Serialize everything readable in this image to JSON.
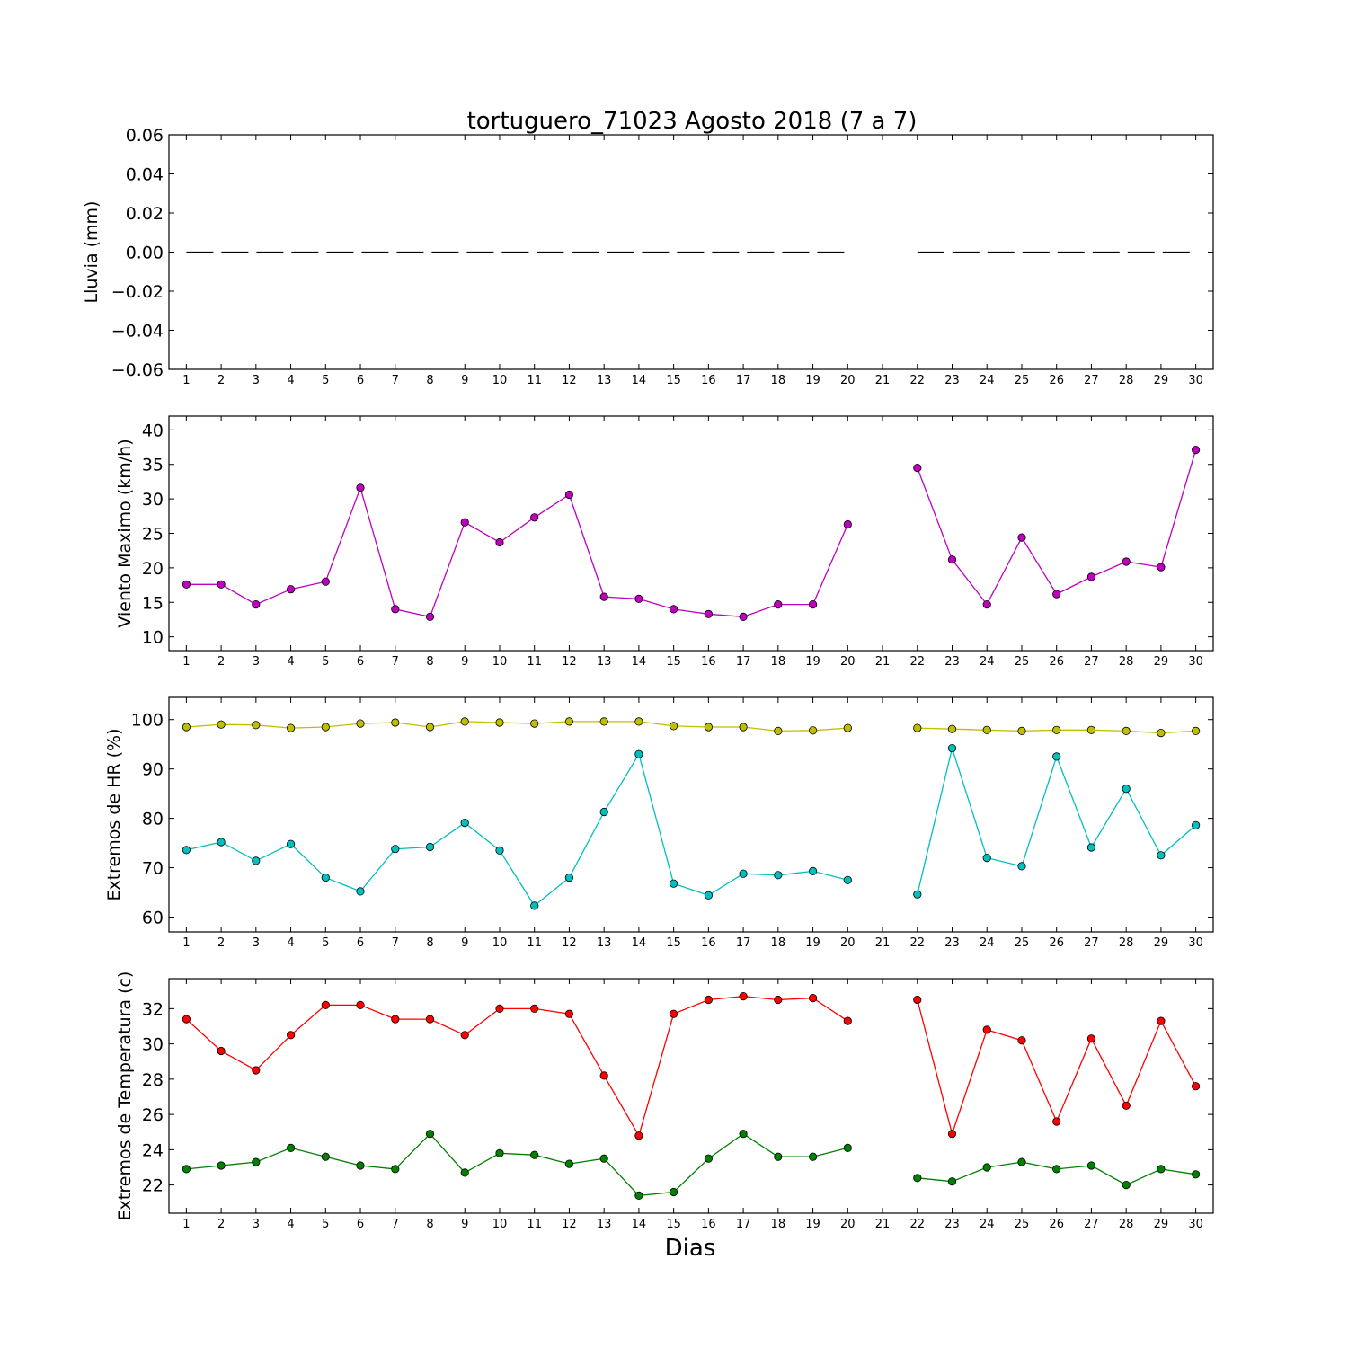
{
  "chart_data": {
    "type": "line",
    "title": "tortuguero_71023 Agosto 2018  (7 a 7)",
    "xlabel": "Dias",
    "x": [
      1,
      2,
      3,
      4,
      5,
      6,
      7,
      8,
      9,
      10,
      11,
      12,
      13,
      14,
      15,
      16,
      17,
      18,
      19,
      20,
      21,
      22,
      23,
      24,
      25,
      26,
      27,
      28,
      29,
      30
    ],
    "xlim": [
      0.5,
      30.5
    ],
    "grid": false,
    "panels": [
      {
        "id": "lluvia",
        "ylabel": "Lluvia (mm)",
        "ylim": [
          -0.06,
          0.06
        ],
        "yticks": [
          0.06,
          0.04,
          0.02,
          0.0,
          -0.02,
          -0.04,
          -0.06
        ],
        "ytick_labels": [
          "0.06",
          "0.04",
          "0.02",
          "0.00",
          "−0.02",
          "−0.04",
          "−0.06"
        ],
        "series": [
          {
            "color": "#000000",
            "style": "dash-segments",
            "markers": false,
            "values": [
              0,
              0,
              0,
              0,
              0,
              0,
              0,
              0,
              0,
              0,
              0,
              0,
              0,
              0,
              0,
              0,
              0,
              0,
              0,
              0,
              null,
              0,
              0,
              0,
              0,
              0,
              0,
              0,
              0,
              0
            ]
          }
        ]
      },
      {
        "id": "viento",
        "ylabel": "Viento Maximo (km/h)",
        "ylim": [
          8,
          42
        ],
        "yticks": [
          10,
          15,
          20,
          25,
          30,
          35,
          40
        ],
        "ytick_labels": [
          "10",
          "15",
          "20",
          "25",
          "30",
          "35",
          "40"
        ],
        "series": [
          {
            "color": "#bf00bf",
            "markers": true,
            "values": [
              17.6,
              17.6,
              14.7,
              16.9,
              18.0,
              31.6,
              14.0,
              12.9,
              26.6,
              23.7,
              27.3,
              30.6,
              15.8,
              15.5,
              14.0,
              13.3,
              12.9,
              14.7,
              14.7,
              26.3,
              null,
              34.5,
              21.2,
              14.7,
              24.4,
              16.2,
              18.7,
              20.9,
              20.1,
              37.1
            ]
          }
        ]
      },
      {
        "id": "hr",
        "ylabel": "Extremos de HR (%)",
        "ylim": [
          57,
          104.5
        ],
        "yticks": [
          60,
          70,
          80,
          90,
          100
        ],
        "ytick_labels": [
          "60",
          "70",
          "80",
          "90",
          "100"
        ],
        "series": [
          {
            "color": "#bfbf00",
            "markers": true,
            "values": [
              98.5,
              99.0,
              98.9,
              98.3,
              98.5,
              99.2,
              99.4,
              98.5,
              99.6,
              99.4,
              99.2,
              99.6,
              99.6,
              99.6,
              98.7,
              98.5,
              98.5,
              97.7,
              97.8,
              98.3,
              null,
              98.3,
              98.1,
              97.9,
              97.7,
              97.9,
              97.9,
              97.7,
              97.3,
              97.7
            ]
          },
          {
            "color": "#00bfbf",
            "markers": true,
            "values": [
              73.6,
              75.2,
              71.4,
              74.8,
              68.0,
              65.2,
              73.8,
              74.2,
              79.1,
              73.5,
              62.3,
              68.0,
              81.3,
              93.0,
              66.8,
              64.4,
              68.8,
              68.5,
              69.3,
              67.5,
              null,
              64.6,
              94.2,
              72.0,
              70.3,
              92.5,
              74.1,
              86.0,
              72.5,
              78.6
            ]
          }
        ]
      },
      {
        "id": "temperatura",
        "ylabel": "Extremos de Temperatura (c)",
        "ylim": [
          20.4,
          33.7
        ],
        "yticks": [
          22,
          24,
          26,
          28,
          30,
          32
        ],
        "ytick_labels": [
          "22",
          "24",
          "26",
          "28",
          "30",
          "32"
        ],
        "series": [
          {
            "color": "#ff0000",
            "markers": true,
            "values": [
              31.4,
              29.6,
              28.5,
              30.5,
              32.2,
              32.2,
              31.4,
              31.4,
              30.5,
              32.0,
              32.0,
              31.7,
              28.2,
              24.8,
              31.7,
              32.5,
              32.7,
              32.5,
              32.6,
              31.3,
              null,
              32.5,
              24.9,
              30.8,
              30.2,
              25.6,
              30.3,
              26.5,
              31.3,
              27.6
            ]
          },
          {
            "color": "#008000",
            "markers": true,
            "values": [
              22.9,
              23.1,
              23.3,
              24.1,
              23.6,
              23.1,
              22.9,
              24.9,
              22.7,
              23.8,
              23.7,
              23.2,
              23.5,
              21.4,
              21.6,
              23.5,
              24.9,
              23.6,
              23.6,
              24.1,
              null,
              22.4,
              22.2,
              23.0,
              23.3,
              22.9,
              23.1,
              22.0,
              22.9,
              22.6
            ]
          }
        ]
      }
    ]
  }
}
